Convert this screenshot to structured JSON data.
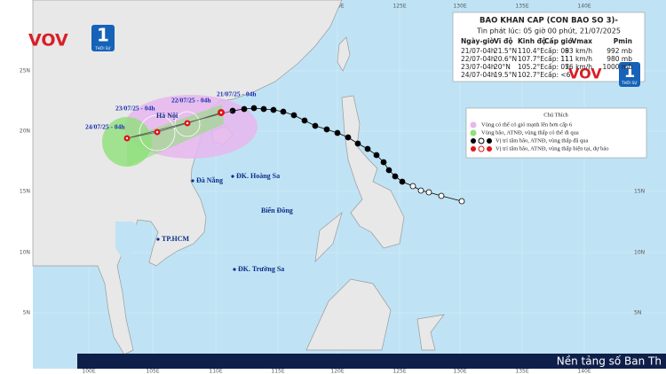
{
  "header": {
    "title": "BAO KHAN CAP (CON BAO SO 3)-",
    "issued": "Tin phát lúc: 05 giờ 00 phút, 21/07/2025"
  },
  "table": {
    "columns": [
      "Ngày-giờ",
      "Vĩ độ",
      "Kinh độ",
      "Cấp gió",
      "Vmax",
      "Pmin"
    ],
    "rows": [
      [
        "21/07-04h",
        "21.5°N",
        "110.4°E",
        "cấp: 09",
        "83 km/h",
        "992 mb"
      ],
      [
        "22/07-04h",
        "20.6°N",
        "107.7°E",
        "cấp: 11",
        "111 km/h",
        "980 mb"
      ],
      [
        "23/07-04h",
        "20°N",
        "105.2°E",
        "cấp: 07",
        "56 km/h",
        "1000 mb"
      ],
      [
        "24/07-04h",
        "19.5°N",
        "102.7°E",
        "cấp: <6"
      ]
    ]
  },
  "legend": {
    "title": "Chú Thích",
    "items": [
      "Vùng có thể có gió mạnh lên hơn cấp 6",
      "Vùng bão, ATNĐ, vùng thấp có thể đi qua",
      "Vị trí tâm bão, ATNĐ, vùng thấp đã qua",
      "Vị trí tâm bão, ATNĐ, vùng thấp hiện tại, dự báo"
    ]
  },
  "axes": {
    "lon": [
      "100E",
      "105E",
      "110E",
      "115E",
      "120E",
      "125E",
      "130E",
      "135E",
      "140E"
    ],
    "lat": [
      "25N",
      "20N",
      "15N",
      "10N",
      "5N"
    ]
  },
  "places": [
    "Biển Đông",
    "Đà Nẵng",
    "ĐK. Hoàng Sa",
    "TP.HCM",
    "ĐK. Trường Sa",
    "Hà Nội"
  ],
  "track_labels": [
    "21/07/25 - 04h",
    "22/07/25 - 04h",
    "23/07/25 - 04h",
    "24/07/25 - 04h"
  ],
  "logo": {
    "brand": "VOV",
    "channel": "1",
    "subtitle": "THỜI SỰ"
  },
  "banner": "Nền tảng số Ban Th"
}
